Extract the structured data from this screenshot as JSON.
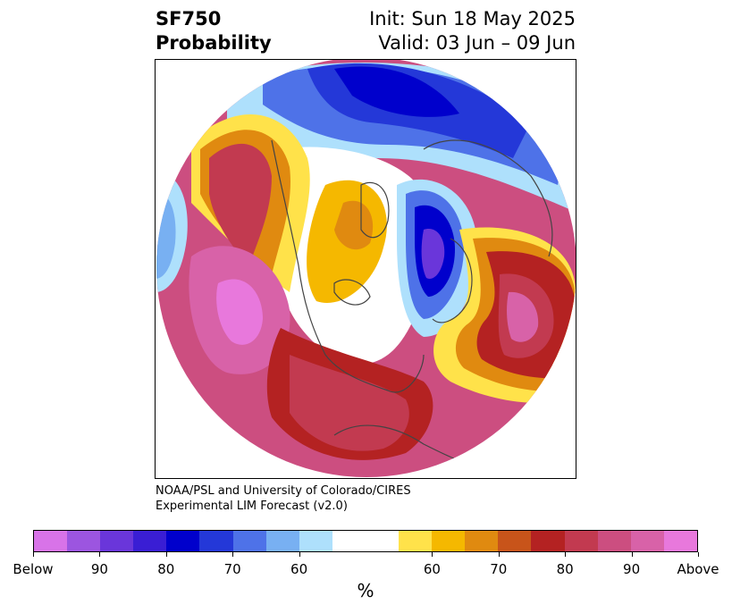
{
  "header": {
    "variable": "SF750",
    "product": "Probability",
    "init": "Init: Sun 18 May 2025",
    "valid": "Valid: 03 Jun – 09 Jun"
  },
  "credit": {
    "line1": "NOAA/PSL and University of Colorado/CIRES",
    "line2": "Experimental LIM Forecast (v2.0)"
  },
  "colorbar": {
    "unit": "%",
    "colors": [
      "#d873e8",
      "#9c55e0",
      "#6a36da",
      "#3a1ed4",
      "#0000cc",
      "#2438d8",
      "#4e72e8",
      "#78b0f2",
      "#aee0fc",
      "#ffffff",
      "#ffffff",
      "#ffe24a",
      "#f5b800",
      "#e08a10",
      "#c8541a",
      "#b42222",
      "#c23a50",
      "#cc4e80",
      "#d862a8",
      "#e878dc"
    ],
    "ticks": [
      "Below",
      "90",
      "80",
      "70",
      "60",
      "60",
      "70",
      "80",
      "90",
      "Above"
    ]
  },
  "map": {
    "colors": {
      "deep_blue": "#0000cc",
      "blue": "#2438d8",
      "mid_blue": "#4e72e8",
      "light_blue": "#78b0f2",
      "pale_blue": "#aee0fc",
      "purple": "#6a36da",
      "violet": "#9c55e0",
      "yellow": "#ffe24a",
      "gold": "#f5b800",
      "orange": "#e08a10",
      "rust": "#c8541a",
      "red": "#b42222",
      "crimson": "#c23a50",
      "rose": "#cc4e80",
      "pink": "#d862a8",
      "magenta": "#e878dc",
      "coast": "#444444"
    }
  }
}
